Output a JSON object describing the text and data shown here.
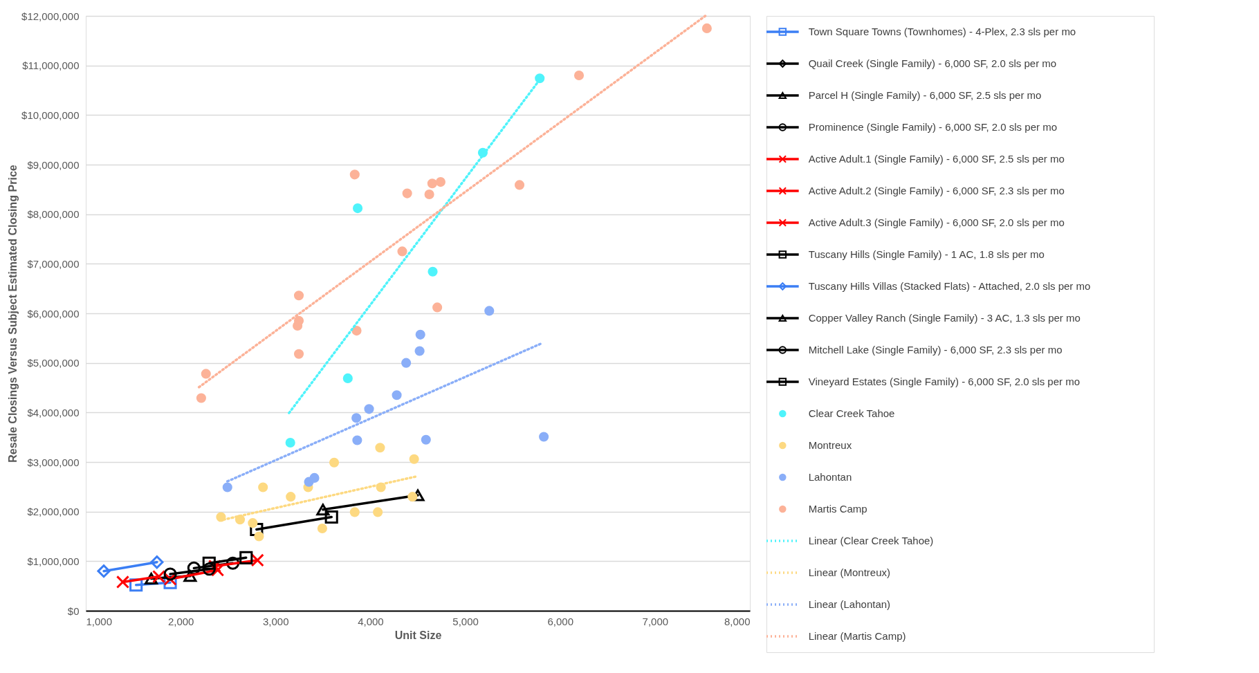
{
  "chart_data": {
    "type": "scatter",
    "xlabel": "Unit Size",
    "ylabel": "Resale Closings Versus Subject Estimated Closing Price",
    "xlim": [
      1000,
      8000
    ],
    "xticks": [
      {
        "value": 1000,
        "label": "1,000"
      },
      {
        "value": 2000,
        "label": "2,000"
      },
      {
        "value": 3000,
        "label": "3,000"
      },
      {
        "value": 4000,
        "label": "4,000"
      },
      {
        "value": 5000,
        "label": "5,000"
      },
      {
        "value": 6000,
        "label": "6,000"
      },
      {
        "value": 7000,
        "label": "7,000"
      },
      {
        "value": 8000,
        "label": "8,000"
      }
    ],
    "ylim": [
      0,
      12000000
    ],
    "yticks": [
      {
        "value": 0,
        "label": "$0"
      },
      {
        "value": 1000000,
        "label": "$1,000,000"
      },
      {
        "value": 2000000,
        "label": "$2,000,000"
      },
      {
        "value": 3000000,
        "label": "$3,000,000"
      },
      {
        "value": 4000000,
        "label": "$4,000,000"
      },
      {
        "value": 5000000,
        "label": "$5,000,000"
      },
      {
        "value": 6000000,
        "label": "$6,000,000"
      },
      {
        "value": 7000000,
        "label": "$7,000,000"
      },
      {
        "value": 8000000,
        "label": "$8,000,000"
      },
      {
        "value": 9000000,
        "label": "$9,000,000"
      },
      {
        "value": 10000000,
        "label": "$10,000,000"
      },
      {
        "value": 11000000,
        "label": "$11,000,000"
      },
      {
        "value": 12000000,
        "label": "$12,000,000"
      }
    ],
    "grid": "y",
    "legend": "right",
    "series": [
      {
        "name": "Town Square Towns (Townhomes) - 4-Plex, 2.3 sls per mo",
        "type": "line",
        "color": "#3b7ef4",
        "marker": "square",
        "x": [
          1530,
          1890
        ],
        "values": [
          520000,
          570000
        ]
      },
      {
        "name": "Quail Creek (Single Family) - 6,000 SF, 2.0 sls per mo",
        "type": "line",
        "color": "#000000",
        "marker": "diamond"
      },
      {
        "name": "Parcel H (Single Family) - 6,000 SF, 2.5 sls per mo",
        "type": "line",
        "color": "#000000",
        "marker": "triangle",
        "x": [
          1690,
          2100
        ],
        "values": [
          650000,
          700000
        ]
      },
      {
        "name": "Prominence (Single Family) - 6,000 SF, 2.0 sls per mo",
        "type": "line",
        "color": "#000000",
        "marker": "circle",
        "x": [
          2140,
          2550
        ],
        "values": [
          860000,
          960000
        ]
      },
      {
        "name": "Active Adult.1 (Single Family) - 6,000 SF, 2.5 sls per mo",
        "type": "line",
        "color": "#ff0000",
        "marker": "cross",
        "x": [
          1390,
          1770
        ],
        "values": [
          580000,
          690000
        ]
      },
      {
        "name": "Active Adult.2 (Single Family) - 6,000 SF, 2.3 sls per mo",
        "type": "line",
        "color": "#ff0000",
        "marker": "cross",
        "x": [
          1890,
          2390
        ],
        "values": [
          640000,
          820000
        ]
      },
      {
        "name": "Active Adult.3 (Single Family) - 6,000 SF, 2.0 sls per mo",
        "type": "line",
        "color": "#ff0000",
        "marker": "cross",
        "x": [
          2360,
          2810
        ],
        "values": [
          900000,
          1020000
        ]
      },
      {
        "name": "Tuscany Hills (Single Family) - 1 AC, 1.8 sls per mo",
        "type": "line",
        "color": "#000000",
        "marker": "square",
        "x": [
          2800,
          3590
        ],
        "values": [
          1640000,
          1890000
        ]
      },
      {
        "name": "Tuscany Hills Villas (Stacked Flats) - Attached, 2.0 sls per mo",
        "type": "line",
        "color": "#3b7ef4",
        "marker": "diamond",
        "x": [
          1190,
          1750
        ],
        "values": [
          800000,
          980000
        ]
      },
      {
        "name": "Copper Valley Ranch (Single Family) - 3 AC, 1.3 sls per mo",
        "type": "line",
        "color": "#000000",
        "marker": "triangle",
        "x": [
          3500,
          4500
        ],
        "values": [
          2040000,
          2330000
        ]
      },
      {
        "name": "Mitchell Lake (Single Family) - 6,000 SF, 2.3 sls per mo",
        "type": "line",
        "color": "#000000",
        "marker": "circle",
        "x": [
          1890,
          2300
        ],
        "values": [
          740000,
          840000
        ]
      },
      {
        "name": "Vineyard Estates (Single Family) - 6,000 SF, 2.0 sls per mo",
        "type": "line",
        "color": "#000000",
        "marker": "square",
        "x": [
          2300,
          2690
        ],
        "values": [
          960000,
          1070000
        ]
      },
      {
        "name": "Clear Creek Tahoe",
        "type": "scatter",
        "color": "#4ff3fb",
        "marker": "circle",
        "x": [
          5785,
          5185,
          3866,
          4657,
          3762,
          3156
        ],
        "values": [
          10740000,
          9240000,
          8120000,
          6840000,
          4690000,
          3390000
        ]
      },
      {
        "name": "Montreux",
        "type": "scatter",
        "color": "#fdd981",
        "marker": "circle",
        "x": [
          2425,
          2626,
          2760,
          2826,
          2868,
          3160,
          3344,
          3618,
          3493,
          3835,
          4078,
          4102,
          4111,
          4461,
          4444
        ],
        "values": [
          1890000,
          1840000,
          1770000,
          1500000,
          2490000,
          2300000,
          2490000,
          2990000,
          1660000,
          1990000,
          1990000,
          3290000,
          2490000,
          3060000,
          2300000
        ]
      },
      {
        "name": "Lahontan",
        "type": "scatter",
        "color": "#8aaef8",
        "marker": "circle",
        "x": [
          2493,
          3352,
          3410,
          3861,
          3852,
          3986,
          4278,
          4377,
          4519,
          4527,
          4586,
          5253,
          5828
        ],
        "values": [
          2490000,
          2600000,
          2680000,
          3440000,
          3890000,
          4070000,
          4350000,
          5000000,
          5240000,
          5570000,
          3450000,
          6050000,
          3510000
        ]
      },
      {
        "name": "Martis Camp",
        "type": "scatter",
        "color": "#fcb298",
        "marker": "circle",
        "x": [
          7547,
          6199,
          3835,
          4652,
          4740,
          4388,
          4621,
          5572,
          4336,
          4705,
          3246,
          3246,
          3232,
          3855,
          3246,
          2267,
          2217
        ],
        "values": [
          11750000,
          10800000,
          8800000,
          8620000,
          8650000,
          8420000,
          8400000,
          8590000,
          7250000,
          6120000,
          6360000,
          5850000,
          5750000,
          5650000,
          5180000,
          4780000,
          4290000
        ]
      },
      {
        "name": "Linear (Clear Creek Tahoe)",
        "type": "line",
        "color": "#4ff3fb",
        "marker": "none",
        "line_style": "dotted",
        "x": [
          3143,
          5760
        ],
        "values": [
          3990000,
          10650000
        ]
      },
      {
        "name": "Linear (Montreux)",
        "type": "line",
        "color": "#fdd981",
        "marker": "none",
        "line_style": "dotted",
        "x": [
          2410,
          4486
        ],
        "values": [
          1820000,
          2710000
        ]
      },
      {
        "name": "Linear (Lahontan)",
        "type": "line",
        "color": "#8aaef8",
        "marker": "none",
        "line_style": "dotted",
        "x": [
          2493,
          5812
        ],
        "values": [
          2610000,
          5400000
        ]
      },
      {
        "name": "Linear (Martis Camp)",
        "type": "line",
        "color": "#fcb298",
        "marker": "none",
        "line_style": "dotted",
        "x": [
          2193,
          7530
        ],
        "values": [
          4510000,
          12000000
        ]
      }
    ]
  }
}
